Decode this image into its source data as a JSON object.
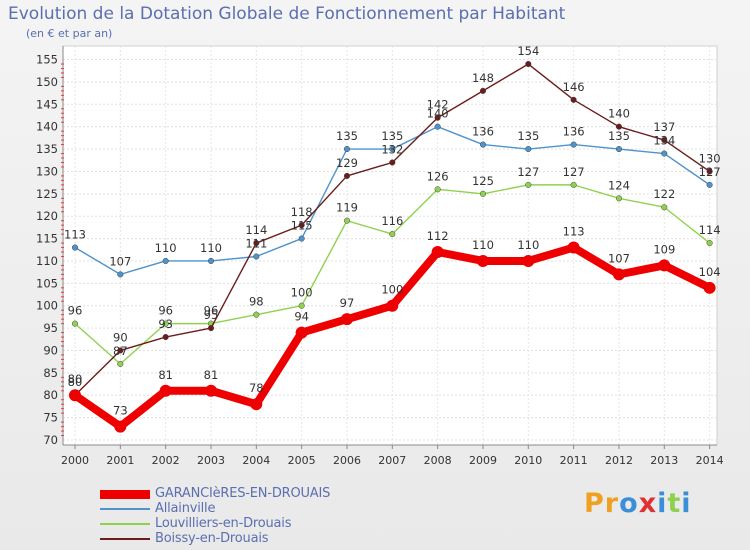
{
  "header": {
    "title": "Evolution de la Dotation Globale de Fonctionnement par Habitant",
    "subtitle": "(en € et par an)"
  },
  "brand": {
    "text": "Proxiti"
  },
  "chart_data": {
    "type": "line",
    "title": "Evolution de la Dotation Globale de Fonctionnement par Habitant",
    "subtitle": "(en € et par an)",
    "xlabel": "",
    "ylabel": "",
    "x": [
      2000,
      2001,
      2002,
      2003,
      2004,
      2005,
      2006,
      2007,
      2008,
      2009,
      2010,
      2011,
      2012,
      2013,
      2014
    ],
    "ylim": [
      70,
      155
    ],
    "yticks": [
      70,
      75,
      80,
      85,
      90,
      95,
      100,
      105,
      110,
      115,
      120,
      125,
      130,
      135,
      140,
      145,
      150,
      155
    ],
    "grid": true,
    "legend": "bottom-left",
    "series": [
      {
        "name": "Allainville",
        "color": "#4f93cc",
        "emphasis": false,
        "values": [
          113,
          107,
          110,
          110,
          111,
          115,
          135,
          135,
          140,
          136,
          135,
          136,
          135,
          134,
          127
        ]
      },
      {
        "name": "Louvilliers-en-Drouais",
        "color": "#8fd14f",
        "emphasis": false,
        "values": [
          96,
          87,
          96,
          96,
          98,
          100,
          119,
          116,
          126,
          125,
          127,
          127,
          124,
          122,
          114
        ]
      },
      {
        "name": "Boissy-en-Drouais",
        "color": "#6b1d1d",
        "emphasis": false,
        "values": [
          80,
          90,
          93,
          95,
          114,
          118,
          129,
          132,
          142,
          148,
          154,
          146,
          140,
          137,
          130
        ]
      },
      {
        "name": "GARANCIèRES-EN-DROUAIS",
        "color": "#ee0000",
        "emphasis": true,
        "values": [
          80,
          73,
          81,
          81,
          78,
          94,
          97,
          100,
          112,
          110,
          110,
          113,
          107,
          109,
          104
        ]
      }
    ],
    "data_labels": [
      {
        "series": "Allainville",
        "labels": [
          "113",
          "107",
          "110",
          "110",
          "111",
          "115",
          "135",
          "135",
          "140",
          "136",
          "135",
          "136",
          "135",
          "134",
          "127"
        ]
      },
      {
        "series": "Louvilliers-en-Drouais",
        "labels": [
          "96",
          "87",
          "96",
          "96",
          "98",
          "100",
          "119",
          "116",
          "126",
          "125",
          "127",
          "127",
          "124",
          "122",
          "114"
        ]
      },
      {
        "series": "Boissy-en-Drouais",
        "labels": [
          "80",
          "90",
          "93",
          "95",
          "114",
          "118",
          "129",
          "132",
          "142",
          "148",
          "154",
          "146",
          "140",
          "137",
          "130"
        ]
      },
      {
        "series": "GARANCIèRES-EN-DROUAIS",
        "labels": [
          "80",
          "73",
          "81",
          "81",
          "78",
          "94",
          "97",
          "100",
          "112",
          "110",
          "110",
          "113",
          "107",
          "109",
          "104"
        ]
      }
    ]
  },
  "legend_items": [
    {
      "label": "GARANCIèRES-EN-DROUAIS",
      "color": "#ee0000",
      "thick": true
    },
    {
      "label": "Allainville",
      "color": "#4f93cc",
      "thick": false
    },
    {
      "label": "Louvilliers-en-Drouais",
      "color": "#8fd14f",
      "thick": false
    },
    {
      "label": "Boissy-en-Drouais",
      "color": "#6b1d1d",
      "thick": false
    }
  ]
}
